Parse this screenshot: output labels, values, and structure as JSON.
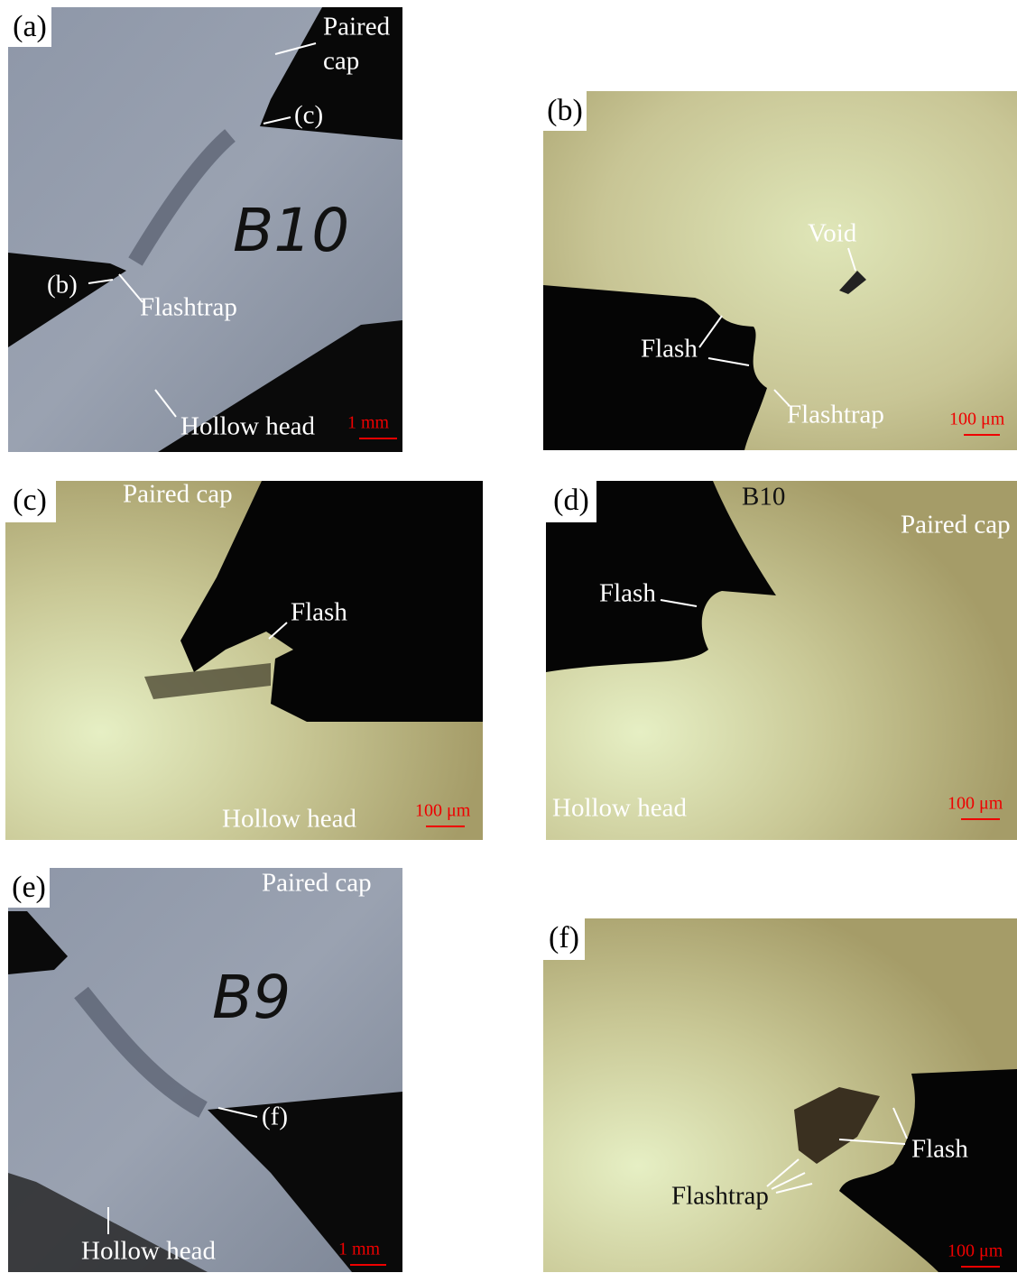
{
  "panels": [
    {
      "label": "(a)",
      "annotations": [
        "Paired",
        "cap",
        "(c)",
        "(b)",
        "Flashtrap",
        "Hollow head"
      ],
      "handwriting": "B10",
      "scale_bar": "1 mm"
    },
    {
      "label": "(b)",
      "annotations": [
        "Void",
        "Flash",
        "Flashtrap"
      ],
      "scale_bar": "100 μm"
    },
    {
      "label": "(c)",
      "annotations": [
        "Paired cap",
        "Flash",
        "Hollow head"
      ],
      "scale_bar": "100 μm"
    },
    {
      "label": "(d)",
      "annotations": [
        "B10",
        "Paired cap",
        "Flash",
        "Hollow head"
      ],
      "scale_bar": "100 μm"
    },
    {
      "label": "(e)",
      "annotations": [
        "Paired cap",
        "(f)",
        "Hollow head"
      ],
      "handwriting": "B9",
      "scale_bar": "1 mm"
    },
    {
      "label": "(f)",
      "annotations": [
        "Flash",
        "Flashtrap"
      ],
      "scale_bar": "100 μm"
    }
  ]
}
